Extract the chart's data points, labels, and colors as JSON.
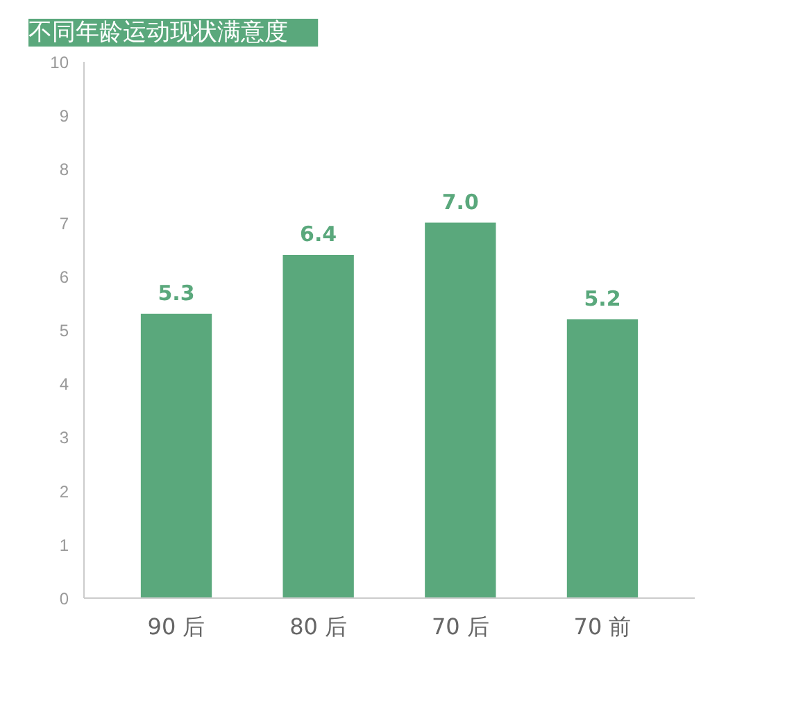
{
  "chart_data": {
    "type": "bar",
    "title": "不同年龄运动现状满意度",
    "categories": [
      "90 后",
      "80 后",
      "70 后",
      "70 前"
    ],
    "values": [
      5.3,
      6.4,
      7.0,
      5.2
    ],
    "color": "#5aa87c",
    "ylim": [
      0,
      10
    ],
    "yticks": [
      0,
      1,
      2,
      3,
      4,
      5,
      6,
      7,
      8,
      9,
      10
    ],
    "grid": false,
    "value_labels": [
      "5.3",
      "6.4",
      "7.0",
      "5.2"
    ]
  }
}
